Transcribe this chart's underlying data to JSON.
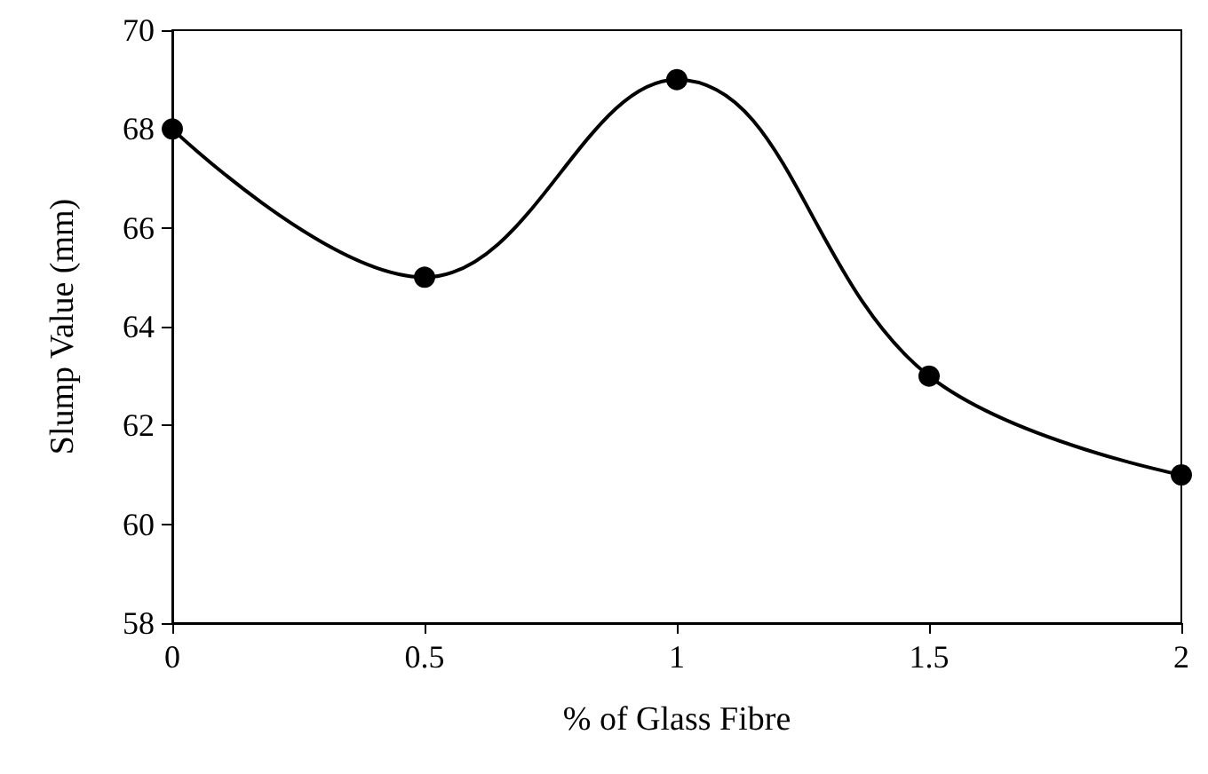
{
  "chart_data": {
    "type": "line",
    "xlabel": "% of Glass Fibre",
    "ylabel": "Slump Value (mm)",
    "x": [
      0,
      0.5,
      1,
      1.5,
      2
    ],
    "series": [
      {
        "color": "#000000",
        "values": [
          68,
          65,
          69,
          63,
          61
        ]
      }
    ],
    "xlim": [
      0,
      2
    ],
    "xticks": [
      0,
      0.5,
      1,
      1.5,
      2
    ],
    "ylim": [
      58,
      70
    ],
    "yticks": [
      58,
      60,
      62,
      64,
      66,
      68,
      70
    ],
    "marker": "circle",
    "line_style": "solid"
  }
}
